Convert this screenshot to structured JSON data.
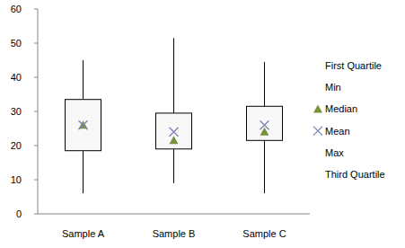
{
  "chart_data": {
    "type": "box",
    "categories": [
      "Sample A",
      "Sample B",
      "Sample C"
    ],
    "series": [
      {
        "name": "First Quartile",
        "marker": "none",
        "values": [
          18.5,
          19,
          21.5
        ]
      },
      {
        "name": "Min",
        "marker": "none",
        "values": [
          6,
          9,
          6
        ]
      },
      {
        "name": "Median",
        "color": "#77933c",
        "marker": "triangle",
        "values": [
          26,
          21.5,
          24
        ]
      },
      {
        "name": "Mean",
        "color": "#7f7fb8",
        "marker": "x",
        "values": [
          26,
          24,
          26
        ]
      },
      {
        "name": "Max",
        "marker": "none",
        "values": [
          45,
          51.5,
          44.5
        ]
      },
      {
        "name": "Third Quartile",
        "marker": "none",
        "values": [
          33.5,
          29.5,
          31.5
        ]
      }
    ],
    "ylim": [
      0,
      60
    ],
    "yticks": [
      0,
      10,
      20,
      30,
      40,
      50,
      60
    ],
    "grid": false,
    "legend": "right"
  }
}
